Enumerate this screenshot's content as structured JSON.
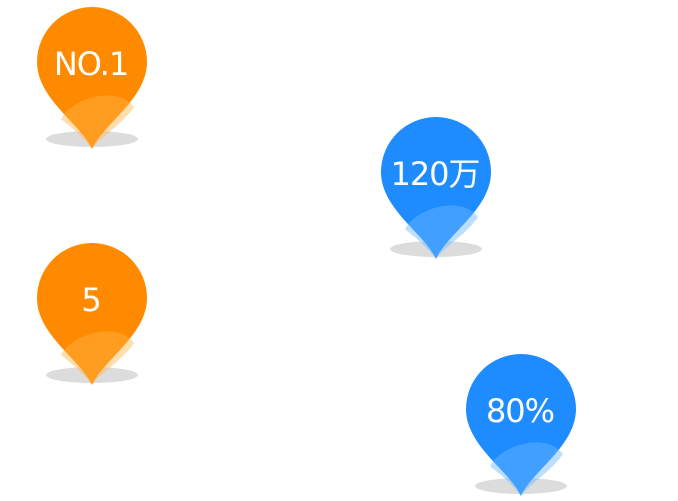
{
  "pins": [
    {
      "label": "NO.1",
      "color": "#ff8a00",
      "shade": "#ffb347"
    },
    {
      "label": "120万",
      "color": "#1e8bff",
      "shade": "#6ab8ff"
    },
    {
      "label": "5",
      "color": "#ff8a00",
      "shade": "#ffb347"
    },
    {
      "label": "80%",
      "color": "#1e8bff",
      "shade": "#6ab8ff"
    }
  ]
}
